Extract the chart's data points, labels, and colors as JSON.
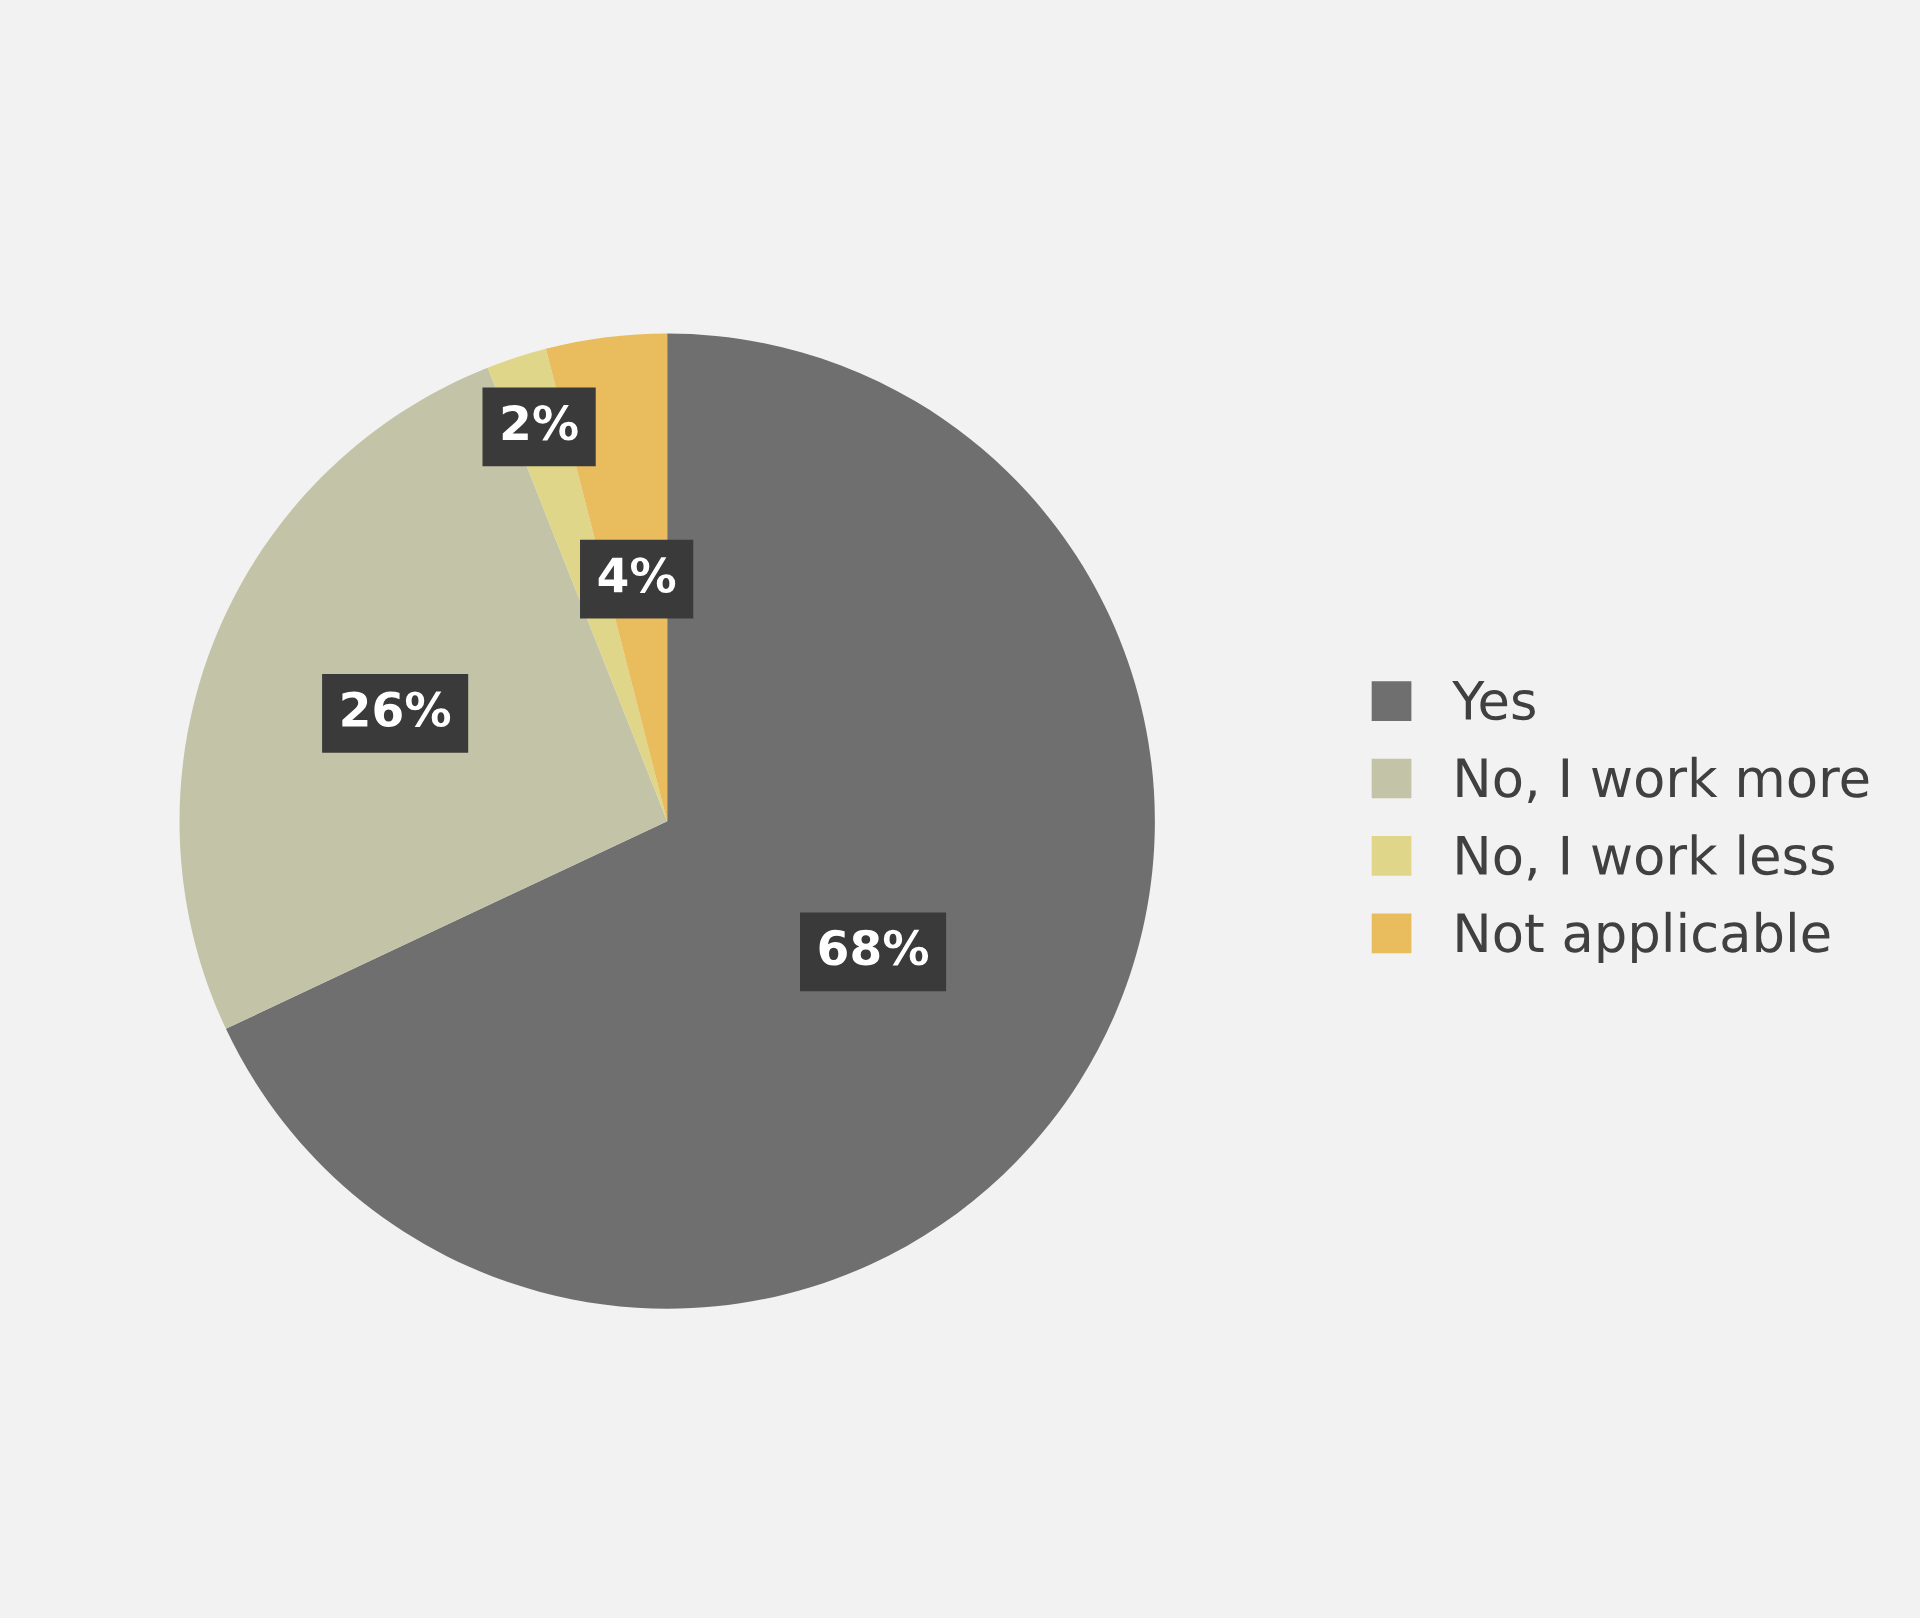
{
  "chart_data": {
    "type": "pie",
    "categories": [
      "Yes",
      "No, I work more",
      "No, I work less",
      "Not applicable"
    ],
    "values": [
      68,
      26,
      2,
      4
    ],
    "colors": [
      "#6f6f6f",
      "#c3c3a8",
      "#e0d68a",
      "#e9bc5e"
    ],
    "value_labels": [
      "68%",
      "26%",
      "2%",
      "4%"
    ],
    "legend": "right"
  }
}
